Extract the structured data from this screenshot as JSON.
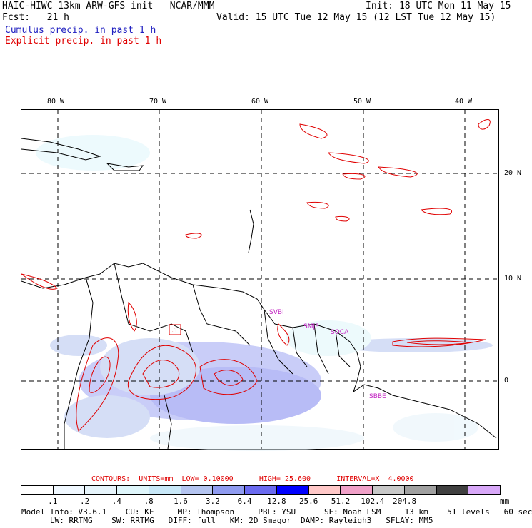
{
  "header": {
    "model": "HAIC-HIWC 13km ARW-GFS init   NCAR/MMM",
    "init": "Init: 18 UTC Mon 11 May 15",
    "fcst": "Fcst:   21 h",
    "valid": "Valid: 15 UTC Tue 12 May 15 (12 LST Tue 12 May 15)",
    "cumulus": "Cumulus precip. in past 1 h",
    "explicit": "Explicit precip. in past 1 h"
  },
  "map": {
    "lon_labels": [
      "80 W",
      "70 W",
      "60 W",
      "50 W",
      "40 W"
    ],
    "lat_labels": [
      "20 N",
      "10 N",
      "0"
    ],
    "stations": [
      "SVBI",
      "SMJP",
      "SOCA",
      "SBBE"
    ],
    "contour_box_label": ".1",
    "colors": {
      "cumulus": "#7f86f0",
      "explicit": "#e00000",
      "coast": "#000000"
    }
  },
  "contours": {
    "text_parts": [
      "CONTOURS:",
      "UNITS=mm",
      "LOW= 0.10000",
      "HIGH= 25.600",
      "INTERVAL=X  4.0000"
    ]
  },
  "scale": {
    "labels": [
      ".1",
      ".2",
      ".4",
      ".8",
      "1.6",
      "3.2",
      "6.4",
      "12.8",
      "25.6",
      "51.2",
      "102.4",
      "204.8"
    ],
    "unit": "mm",
    "colors": [
      "#ffffff",
      "#f0f8ff",
      "#e6f4fb",
      "#dff6fb",
      "#c8e8f8",
      "#b4c4f0",
      "#8f9bf0",
      "#6b6bf0",
      "#0000ff",
      "#ffc8c8",
      "#f0a0c8",
      "#c8c8c8",
      "#a0a0a0",
      "#404040",
      "#d8a8f8"
    ]
  },
  "footer": {
    "line1": [
      "Model Info: V3.6.1",
      "CU: KF",
      "MP: Thompson",
      "PBL: YSU",
      "SF: Noah LSM",
      "13 km",
      "51 levels",
      "60 sec"
    ],
    "line2": [
      "LW: RRTMG",
      "SW: RRTMG",
      "DIFF: full",
      "KM: 2D Smagor",
      "DAMP: Rayleigh3",
      "SFLAY: MM5"
    ]
  }
}
